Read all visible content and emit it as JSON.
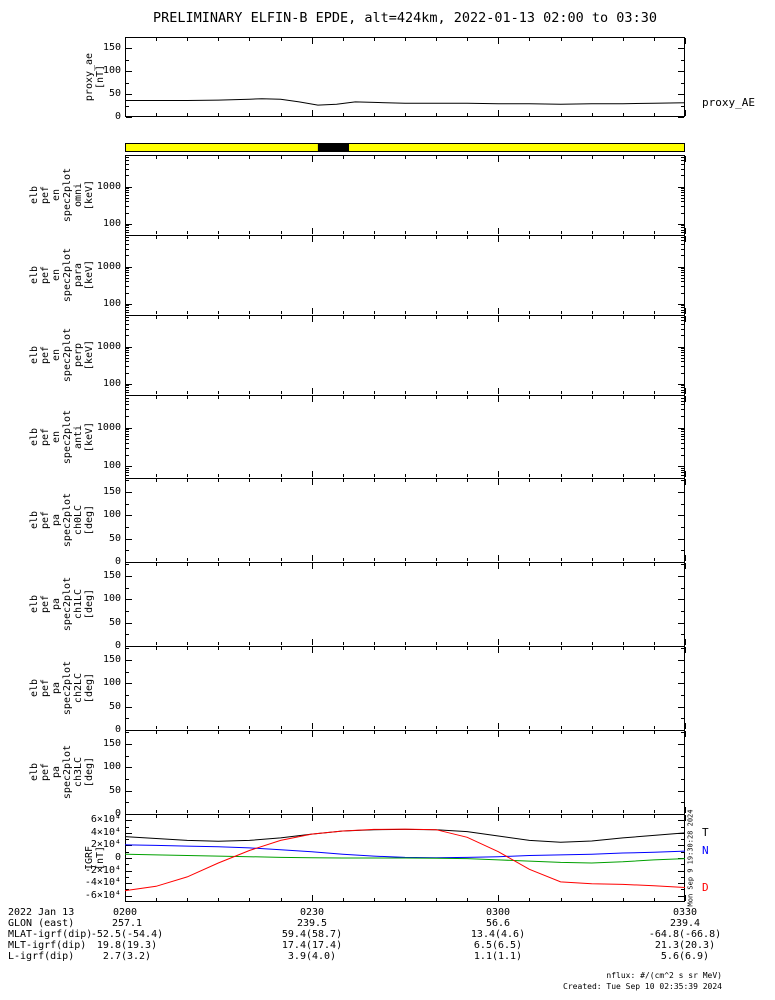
{
  "title": "PRELIMINARY ELFIN-B EPDE, alt=424km, 2022-01-13 02:00 to 03:30",
  "side_timestamp": "Mon Sep  9 19:30:28 2024",
  "status_bar": {
    "color": "#ffff00",
    "segments": [
      {
        "start_min": 31,
        "end_min": 36,
        "color": "#000000"
      }
    ]
  },
  "footer": {
    "date_label": "2022 Jan 13",
    "time_ticks": [
      "0200",
      "0230",
      "0300",
      "0330"
    ],
    "rows": [
      {
        "label": "GLON (east)",
        "values": [
          "257.1",
          "239.5",
          "56.6",
          "239.4"
        ]
      },
      {
        "label": "MLAT-igrf(dip)",
        "values": [
          "-52.5(-54.4)",
          "59.4(58.7)",
          "13.4(4.6)",
          "-64.8(-66.8)"
        ]
      },
      {
        "label": "MLT-igrf(dip)",
        "values": [
          "19.8(19.3)",
          "17.4(17.4)",
          "6.5(6.5)",
          "21.3(20.3)"
        ]
      },
      {
        "label": "L-igrf(dip)",
        "values": [
          "2.7(3.2)",
          "3.9(4.0)",
          "1.1(1.1)",
          "5.6(6.9)"
        ]
      }
    ],
    "nflux_note": "nflux: #/(cm^2 s sr MeV)",
    "created": "Created: Tue Sep 10 02:35:39 2024"
  },
  "panels": [
    {
      "id": "proxy_ae",
      "label_lines": [
        "proxy_ae",
        "[nT]"
      ],
      "yscale": "linear",
      "ymin": 0,
      "ymax": 175,
      "yminor": 25,
      "yticks": [
        {
          "v": 150,
          "label": "150"
        },
        {
          "v": 100,
          "label": "100"
        },
        {
          "v": 50,
          "label": "50"
        },
        {
          "v": 0,
          "label": "0"
        }
      ],
      "right_labels": [
        {
          "series": "proxy_AE",
          "text": "proxy_AE",
          "color": "#000000"
        }
      ]
    },
    {
      "id": "en_omni",
      "label_lines": [
        "elb",
        "pef",
        "en",
        "spec2plot",
        "omni",
        "[keV]"
      ],
      "yscale": "log",
      "ymin": 50,
      "ymax": 7000,
      "yticks": [
        {
          "v": 1000,
          "label": "1000"
        },
        {
          "v": 100,
          "label": "100"
        }
      ]
    },
    {
      "id": "en_para",
      "label_lines": [
        "elb",
        "pef",
        "en",
        "spec2plot",
        "para",
        "[keV]"
      ],
      "yscale": "log",
      "ymin": 50,
      "ymax": 7000,
      "yticks": [
        {
          "v": 1000,
          "label": "1000"
        },
        {
          "v": 100,
          "label": "100"
        }
      ]
    },
    {
      "id": "en_perp",
      "label_lines": [
        "elb",
        "pef",
        "en",
        "spec2plot",
        "perp",
        "[keV]"
      ],
      "yscale": "log",
      "ymin": 50,
      "ymax": 7000,
      "yticks": [
        {
          "v": 1000,
          "label": "1000"
        },
        {
          "v": 100,
          "label": "100"
        }
      ]
    },
    {
      "id": "en_anti",
      "label_lines": [
        "elb",
        "pef",
        "en",
        "spec2plot",
        "anti",
        "[keV]"
      ],
      "yscale": "log",
      "ymin": 50,
      "ymax": 7000,
      "yticks": [
        {
          "v": 1000,
          "label": "1000"
        },
        {
          "v": 100,
          "label": "100"
        }
      ]
    },
    {
      "id": "pa_ch0",
      "label_lines": [
        "elb",
        "pef",
        "pa",
        "spec2plot",
        "ch0LC",
        "[deg]"
      ],
      "yscale": "linear",
      "ymin": 0,
      "ymax": 180,
      "yminor": 25,
      "yticks": [
        {
          "v": 150,
          "label": "150"
        },
        {
          "v": 100,
          "label": "100"
        },
        {
          "v": 50,
          "label": "50"
        },
        {
          "v": 0,
          "label": "0"
        }
      ]
    },
    {
      "id": "pa_ch1",
      "label_lines": [
        "elb",
        "pef",
        "pa",
        "spec2plot",
        "ch1LC",
        "[deg]"
      ],
      "yscale": "linear",
      "ymin": 0,
      "ymax": 180,
      "yminor": 25,
      "yticks": [
        {
          "v": 150,
          "label": "150"
        },
        {
          "v": 100,
          "label": "100"
        },
        {
          "v": 50,
          "label": "50"
        },
        {
          "v": 0,
          "label": "0"
        }
      ]
    },
    {
      "id": "pa_ch2",
      "label_lines": [
        "elb",
        "pef",
        "pa",
        "spec2plot",
        "ch2LC",
        "[deg]"
      ],
      "yscale": "linear",
      "ymin": 0,
      "ymax": 180,
      "yminor": 25,
      "yticks": [
        {
          "v": 150,
          "label": "150"
        },
        {
          "v": 100,
          "label": "100"
        },
        {
          "v": 50,
          "label": "50"
        },
        {
          "v": 0,
          "label": "0"
        }
      ]
    },
    {
      "id": "pa_ch3",
      "label_lines": [
        "elb",
        "pef",
        "pa",
        "spec2plot",
        "ch3LC",
        "[deg]"
      ],
      "yscale": "linear",
      "ymin": 0,
      "ymax": 180,
      "yminor": 25,
      "yticks": [
        {
          "v": 150,
          "label": "150"
        },
        {
          "v": 100,
          "label": "100"
        },
        {
          "v": 50,
          "label": "50"
        },
        {
          "v": 0,
          "label": "0"
        }
      ]
    },
    {
      "id": "igrf",
      "label_lines": [
        "IGRF",
        "[nT]"
      ],
      "yscale": "linear",
      "ymin": -70000,
      "ymax": 70000,
      "yminor": 10000,
      "yticks": [
        {
          "v": 60000,
          "label": "6×10⁴"
        },
        {
          "v": 40000,
          "label": "4×10⁴"
        },
        {
          "v": 20000,
          "label": "2×10⁴"
        },
        {
          "v": 0,
          "label": "0"
        },
        {
          "v": -20000,
          "label": "-2×10⁴"
        },
        {
          "v": -40000,
          "label": "-4×10⁴"
        },
        {
          "v": -60000,
          "label": "-6×10⁴"
        }
      ],
      "right_labels": [
        {
          "series": "T",
          "text": "T",
          "color": "#000000"
        },
        {
          "series": "N",
          "text": "N",
          "color": "#0000ff"
        },
        {
          "series": "D",
          "text": "D",
          "color": "#ff0000"
        }
      ]
    }
  ],
  "chart_data": [
    {
      "id": "proxy_ae",
      "type": "line",
      "title": "proxy_AE",
      "ylabel": "proxy_ae [nT]",
      "xlim_minutes": [
        0,
        90
      ],
      "ylim": [
        0,
        175
      ],
      "yticks": [
        0,
        50,
        100,
        150
      ],
      "series": [
        {
          "name": "proxy_AE",
          "color": "#000000",
          "x": [
            0,
            5,
            10,
            15,
            20,
            22,
            25,
            28,
            31,
            34,
            37,
            40,
            45,
            50,
            55,
            60,
            65,
            70,
            75,
            80,
            85,
            90
          ],
          "y": [
            36,
            36,
            36,
            37,
            39,
            40,
            39,
            33,
            26,
            28,
            33,
            32,
            30,
            30,
            30,
            29,
            29,
            28,
            29,
            29,
            30,
            31
          ]
        }
      ]
    },
    {
      "id": "en_omni",
      "type": "heatmap",
      "ylabel": "elb_pef_en_spec2plot_omni [keV]",
      "yscale": "log",
      "ylim": [
        50,
        7000
      ],
      "yticks": [
        100,
        1000
      ],
      "xlim_minutes": [
        0,
        90
      ],
      "values": []
    },
    {
      "id": "en_para",
      "type": "heatmap",
      "ylabel": "elb_pef_en_spec2plot_para [keV]",
      "yscale": "log",
      "ylim": [
        50,
        7000
      ],
      "yticks": [
        100,
        1000
      ],
      "xlim_minutes": [
        0,
        90
      ],
      "values": []
    },
    {
      "id": "en_perp",
      "type": "heatmap",
      "ylabel": "elb_pef_en_spec2plot_perp [keV]",
      "yscale": "log",
      "ylim": [
        50,
        7000
      ],
      "yticks": [
        100,
        1000
      ],
      "xlim_minutes": [
        0,
        90
      ],
      "values": []
    },
    {
      "id": "en_anti",
      "type": "heatmap",
      "ylabel": "elb_pef_en_spec2plot_anti [keV]",
      "yscale": "log",
      "ylim": [
        50,
        7000
      ],
      "yticks": [
        100,
        1000
      ],
      "xlim_minutes": [
        0,
        90
      ],
      "values": []
    },
    {
      "id": "pa_ch0",
      "type": "heatmap",
      "ylabel": "elb_pef_pa_spec2plot_ch0LC [deg]",
      "ylim": [
        0,
        180
      ],
      "yticks": [
        0,
        50,
        100,
        150
      ],
      "xlim_minutes": [
        0,
        90
      ],
      "values": []
    },
    {
      "id": "pa_ch1",
      "type": "heatmap",
      "ylabel": "elb_pef_pa_spec2plot_ch1LC [deg]",
      "ylim": [
        0,
        180
      ],
      "yticks": [
        0,
        50,
        100,
        150
      ],
      "xlim_minutes": [
        0,
        90
      ],
      "values": []
    },
    {
      "id": "pa_ch2",
      "type": "heatmap",
      "ylabel": "elb_pef_pa_spec2plot_ch2LC [deg]",
      "ylim": [
        0,
        180
      ],
      "yticks": [
        0,
        50,
        100,
        150
      ],
      "xlim_minutes": [
        0,
        90
      ],
      "values": []
    },
    {
      "id": "pa_ch3",
      "type": "heatmap",
      "ylabel": "elb_pef_pa_spec2plot_ch3LC [deg]",
      "ylim": [
        0,
        180
      ],
      "yticks": [
        0,
        50,
        100,
        150
      ],
      "xlim_minutes": [
        0,
        90
      ],
      "values": []
    },
    {
      "id": "igrf",
      "type": "line",
      "ylabel": "IGRF [nT]",
      "xlim_minutes": [
        0,
        90
      ],
      "ylim": [
        -70000,
        70000
      ],
      "yticks": [
        -60000,
        -40000,
        -20000,
        0,
        20000,
        40000,
        60000
      ],
      "series": [
        {
          "name": "T",
          "color": "#000000",
          "x": [
            0,
            5,
            10,
            15,
            20,
            25,
            30,
            35,
            40,
            45,
            50,
            55,
            60,
            65,
            70,
            75,
            80,
            85,
            90
          ],
          "y": [
            34000,
            31000,
            28000,
            26500,
            28000,
            32000,
            38000,
            43000,
            45000,
            45500,
            45000,
            42000,
            35000,
            28000,
            25000,
            27000,
            32000,
            36000,
            40000
          ]
        },
        {
          "name": "N",
          "color": "#0000ff",
          "x": [
            0,
            5,
            10,
            15,
            20,
            25,
            30,
            35,
            40,
            45,
            50,
            55,
            60,
            65,
            70,
            75,
            80,
            85,
            90
          ],
          "y": [
            21000,
            20000,
            19000,
            18000,
            16000,
            13000,
            10000,
            6000,
            3000,
            1000,
            500,
            1000,
            2000,
            4000,
            5000,
            6000,
            8000,
            9000,
            11000
          ]
        },
        {
          "name": "E",
          "color": "#00a000",
          "x": [
            0,
            5,
            10,
            15,
            20,
            25,
            30,
            35,
            40,
            45,
            50,
            55,
            60,
            65,
            70,
            75,
            80,
            85,
            90
          ],
          "y": [
            6000,
            5000,
            4000,
            3000,
            2000,
            1000,
            500,
            0,
            0,
            0,
            -500,
            -1000,
            -3000,
            -5000,
            -7000,
            -8000,
            -6000,
            -3000,
            -1000
          ]
        },
        {
          "name": "D",
          "color": "#ff0000",
          "x": [
            0,
            5,
            10,
            15,
            20,
            25,
            30,
            35,
            40,
            45,
            50,
            55,
            60,
            65,
            70,
            75,
            80,
            85,
            90
          ],
          "y": [
            -52000,
            -45000,
            -30000,
            -8000,
            12000,
            28000,
            38000,
            43000,
            45500,
            46000,
            45000,
            33000,
            10000,
            -18000,
            -38000,
            -41000,
            -42000,
            -44000,
            -47000
          ]
        }
      ]
    }
  ]
}
